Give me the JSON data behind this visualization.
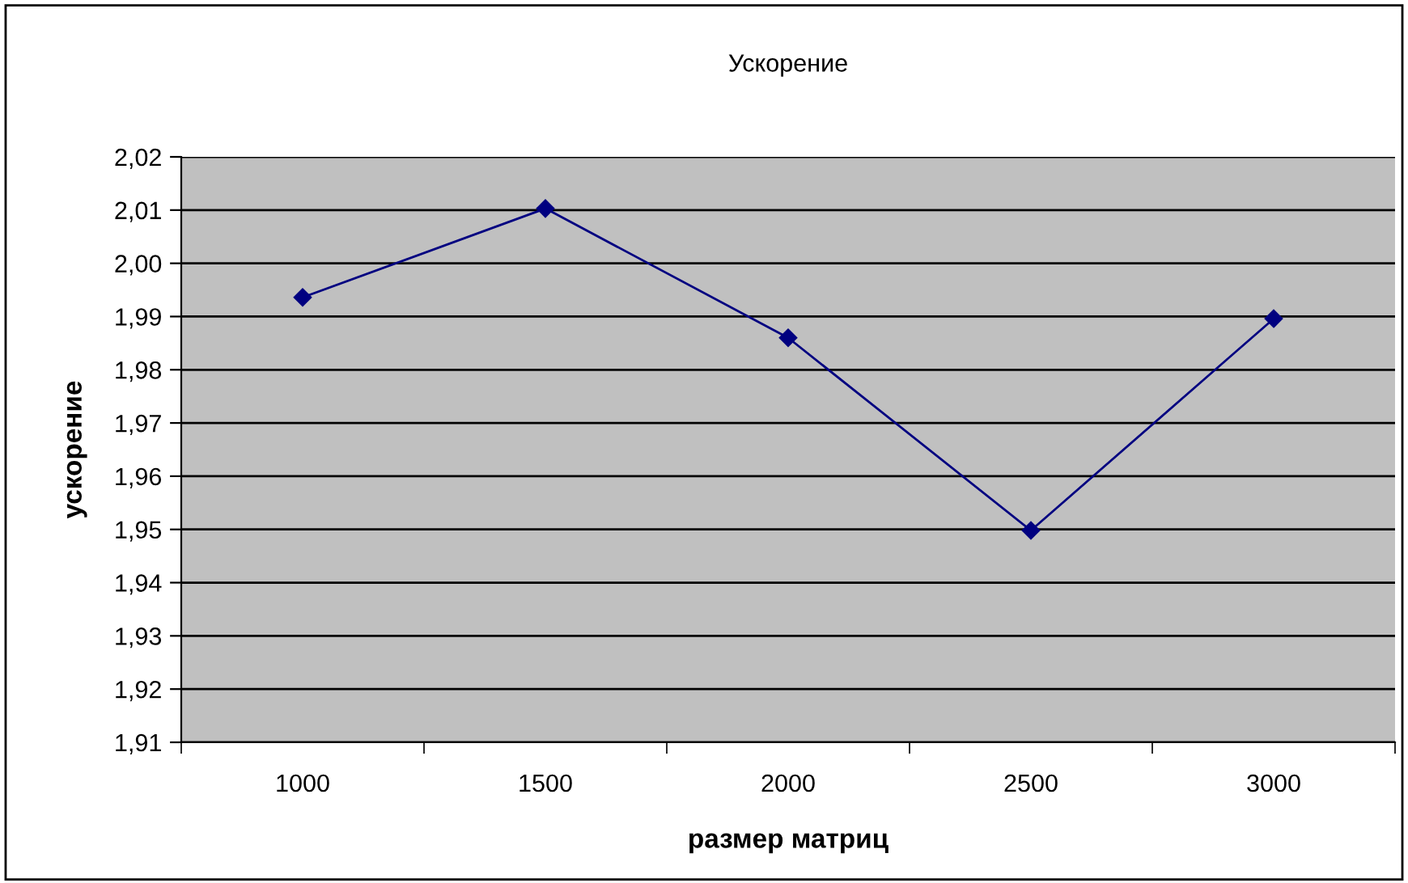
{
  "chart_data": {
    "type": "line",
    "title": "Ускорение",
    "xlabel": "размер матриц",
    "ylabel": "ускорение",
    "categories": [
      "1000",
      "1500",
      "2000",
      "2500",
      "3000"
    ],
    "series": [
      {
        "color": "#000080",
        "values": [
          1.9936,
          2.0103,
          1.986,
          1.9498,
          1.9896
        ]
      }
    ],
    "ylim": [
      1.91,
      2.02
    ],
    "yticks": [
      {
        "value": 1.91,
        "label": "1,91"
      },
      {
        "value": 1.92,
        "label": "1,92"
      },
      {
        "value": 1.93,
        "label": "1,93"
      },
      {
        "value": 1.94,
        "label": "1,94"
      },
      {
        "value": 1.95,
        "label": "1,95"
      },
      {
        "value": 1.96,
        "label": "1,96"
      },
      {
        "value": 1.97,
        "label": "1,97"
      },
      {
        "value": 1.98,
        "label": "1,98"
      },
      {
        "value": 1.99,
        "label": "1,99"
      },
      {
        "value": 2.0,
        "label": "2,00"
      },
      {
        "value": 2.01,
        "label": "2,01"
      },
      {
        "value": 2.02,
        "label": "2,02"
      }
    ],
    "grid": "y",
    "marker": "diamond",
    "line_style": "solid",
    "legend": false
  }
}
